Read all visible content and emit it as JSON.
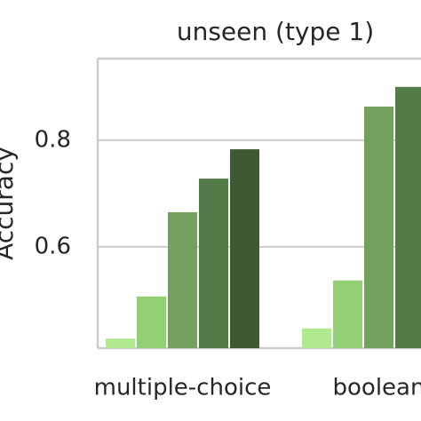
{
  "chart_data": {
    "type": "bar",
    "title": "unseen (type 1)",
    "y_label": "Accuracy",
    "categories": [
      "multiple-choice",
      "boolean"
    ],
    "series": [
      {
        "color": "#b1ea8e",
        "values": [
          0.428,
          0.447
        ]
      },
      {
        "color": "#93cf73",
        "values": [
          0.507,
          0.537
        ]
      },
      {
        "color": "#74a05e",
        "values": [
          0.665,
          0.863
        ]
      },
      {
        "color": "#537b47",
        "values": [
          0.728,
          0.9
        ]
      },
      {
        "color": "#3f5a33",
        "values": [
          0.783,
          null
        ]
      }
    ],
    "ylim": [
      0.41,
      0.953
    ],
    "yticks": [
      0.6,
      0.8
    ],
    "grid": true
  }
}
